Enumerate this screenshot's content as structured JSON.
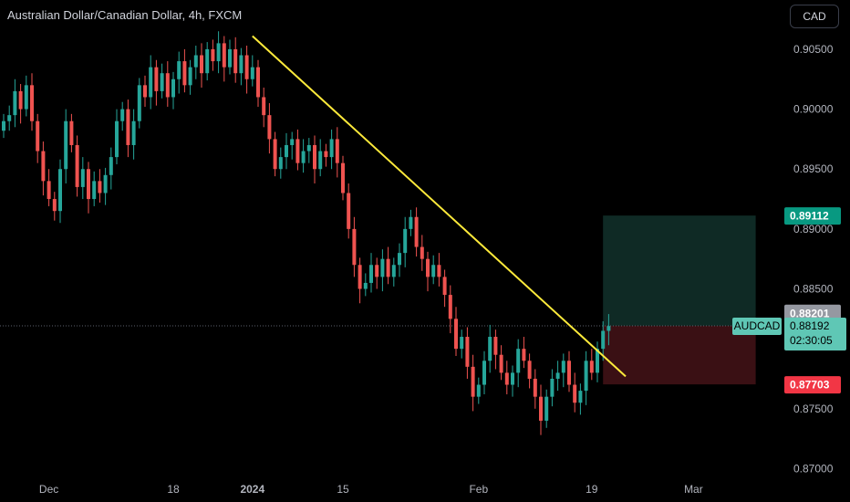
{
  "header": {
    "title": "Australian Dollar/Canadian Dollar, 4h, FXCM",
    "currency_button": "CAD"
  },
  "colors": {
    "bull": "#26a69a",
    "bear": "#ef5350",
    "trendline": "#ffeb3b",
    "target_zone": "#0f2a25",
    "stop_zone": "#3a1014",
    "target_label": "#089981",
    "stop_label": "#f23645",
    "price_label": "#5fc7b5",
    "grey_label": "#9598a1"
  },
  "chart_data": {
    "type": "candlestick",
    "symbol": "AUDCAD",
    "y_ticks": [
      "0.90500",
      "0.90000",
      "0.89500",
      "0.89000",
      "0.88500",
      "0.87500",
      "0.87000"
    ],
    "y_tick_values": [
      0.905,
      0.9,
      0.895,
      0.89,
      0.885,
      0.875,
      0.87
    ],
    "ylim": [
      0.8695,
      0.9085
    ],
    "x_ticks": [
      "Dec",
      "18",
      "2024",
      "15",
      "Feb",
      "19",
      "Mar"
    ],
    "x_tick_index": [
      8,
      30,
      44,
      60,
      84,
      104,
      122
    ],
    "trendline": {
      "from": {
        "index": 44,
        "price": 0.9061
      },
      "to": {
        "index": 110,
        "price": 0.8777
      }
    },
    "position": {
      "start_index": 106,
      "end_index": 133,
      "entry": 0.88192,
      "target": 0.89112,
      "stop": 0.87703
    },
    "labels": {
      "target": "0.89112",
      "upper_grey": "0.88201",
      "symbol_tag": "AUDCAD",
      "current_price": "0.88192",
      "countdown": "02:30:05",
      "stop": "0.87703"
    },
    "closes": [
      0.899,
      0.8995,
      0.9015,
      0.9,
      0.902,
      0.899,
      0.8965,
      0.894,
      0.8925,
      0.8915,
      0.895,
      0.899,
      0.897,
      0.8935,
      0.895,
      0.8925,
      0.894,
      0.893,
      0.8945,
      0.896,
      0.899,
      0.9,
      0.897,
      0.899,
      0.902,
      0.901,
      0.9035,
      0.9015,
      0.903,
      0.901,
      0.9025,
      0.904,
      0.902,
      0.9035,
      0.9045,
      0.903,
      0.905,
      0.904,
      0.9055,
      0.9035,
      0.905,
      0.903,
      0.9045,
      0.9025,
      0.9035,
      0.901,
      0.8995,
      0.8975,
      0.895,
      0.896,
      0.897,
      0.8975,
      0.8955,
      0.8965,
      0.897,
      0.895,
      0.8965,
      0.896,
      0.8975,
      0.8955,
      0.893,
      0.89,
      0.887,
      0.885,
      0.8855,
      0.887,
      0.886,
      0.8875,
      0.886,
      0.887,
      0.888,
      0.89,
      0.891,
      0.8885,
      0.8875,
      0.886,
      0.887,
      0.886,
      0.8845,
      0.8825,
      0.88,
      0.881,
      0.8785,
      0.876,
      0.877,
      0.879,
      0.881,
      0.8795,
      0.878,
      0.877,
      0.878,
      0.88,
      0.879,
      0.8775,
      0.876,
      0.874,
      0.876,
      0.8775,
      0.878,
      0.879,
      0.877,
      0.8755,
      0.8765,
      0.879,
      0.878,
      0.88,
      0.8815,
      0.8819
    ]
  }
}
